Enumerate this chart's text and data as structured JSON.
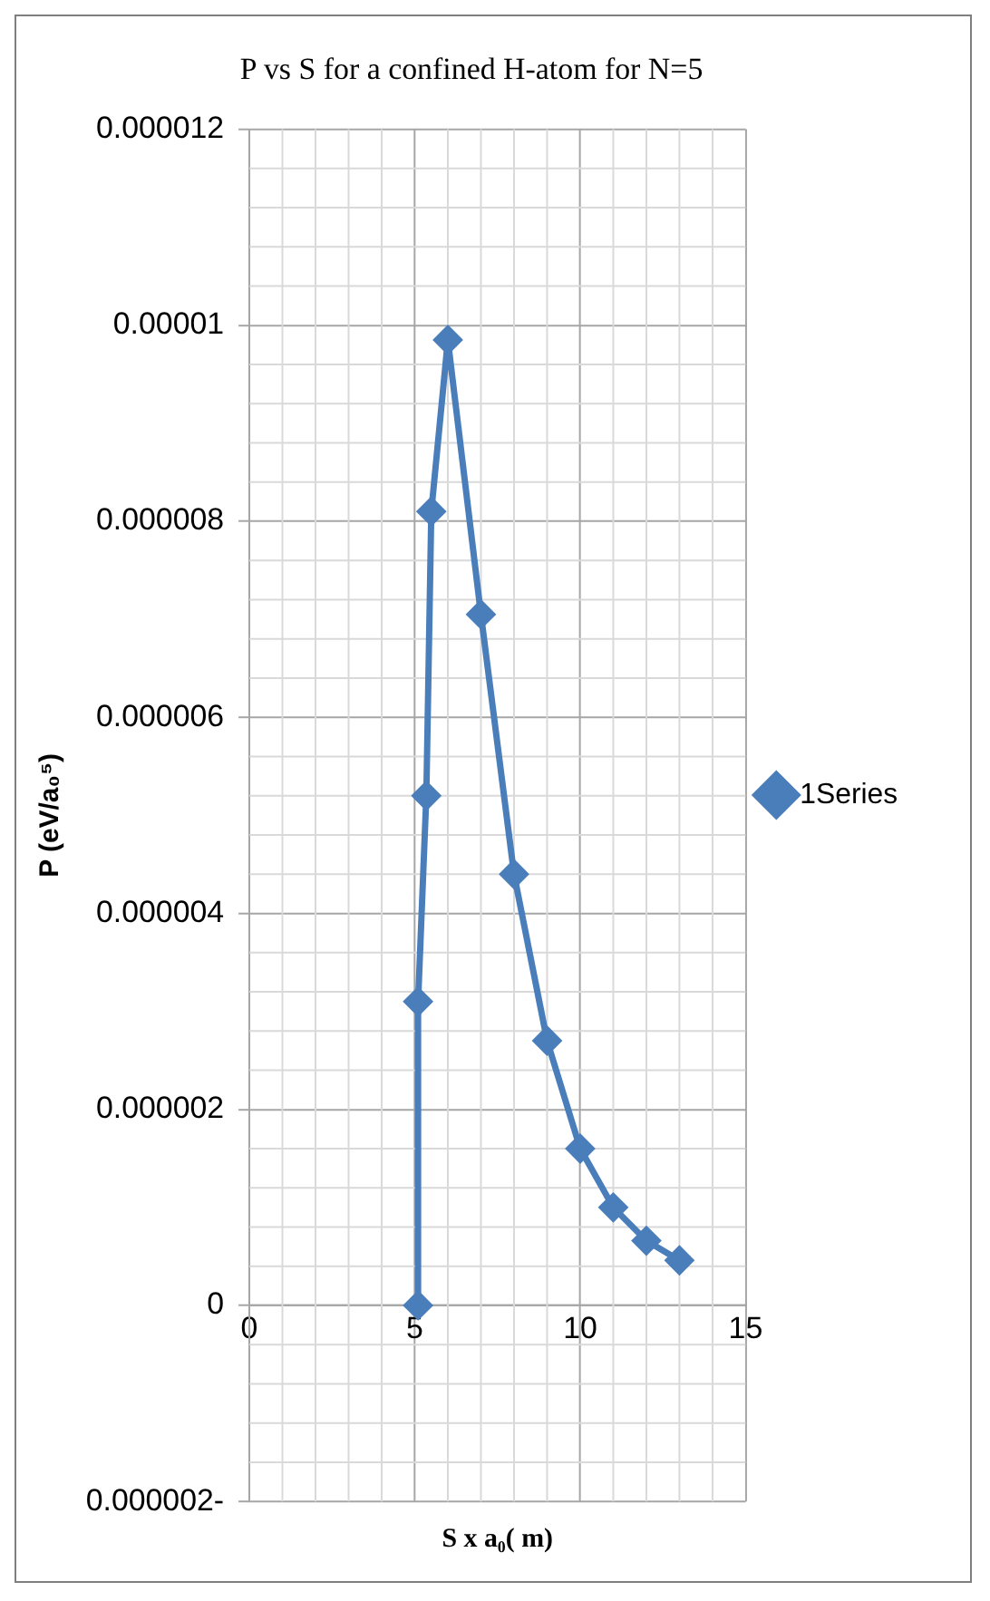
{
  "chart_data": {
    "type": "line",
    "title": "P vs S for a confined H-atom for N=5",
    "xlabel": "S x a₀( m)",
    "ylabel": "P (eV/a₀⁵)",
    "series": [
      {
        "name": "1Series",
        "color": "#4a7ebb",
        "x": [
          5.1,
          5.1,
          5.35,
          5.5,
          6,
          7,
          8,
          9,
          10,
          11,
          12,
          13
        ],
        "values": [
          0,
          3.1e-06,
          5.2e-06,
          8.1e-06,
          9.85e-06,
          7.05e-06,
          4.4e-06,
          2.7e-06,
          1.6e-06,
          1e-06,
          6.6e-07,
          4.6e-07
        ]
      }
    ],
    "xlim": [
      0,
      15
    ],
    "xticks": [
      0,
      5,
      10,
      15
    ],
    "ylim": [
      -2e-06,
      1.2e-05
    ],
    "yticks": [
      {
        "value": -2e-06,
        "label": "0.000002-"
      },
      0,
      {
        "value": 2e-06,
        "label": "0.000002"
      },
      {
        "value": 4e-06,
        "label": "0.000004"
      },
      {
        "value": 6e-06,
        "label": "0.000006"
      },
      {
        "value": 8e-06,
        "label": "0.000008"
      },
      {
        "value": 1e-05,
        "label": "0.00001"
      },
      {
        "value": 1.2e-05,
        "label": "0.000012"
      }
    ],
    "grid": true,
    "legend": "right",
    "marker": "diamond",
    "line_style": "solid"
  }
}
